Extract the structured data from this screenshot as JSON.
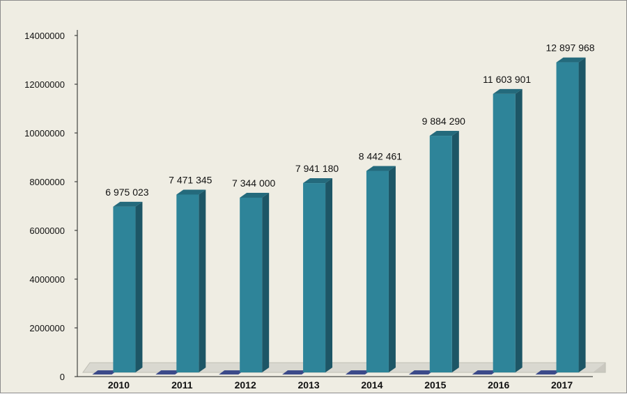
{
  "chart_data": {
    "type": "bar",
    "categories": [
      "2010",
      "2011",
      "2012",
      "2013",
      "2014",
      "2015",
      "2016",
      "2017"
    ],
    "values": [
      6975023,
      7471345,
      7344000,
      7941180,
      8442461,
      9884290,
      11603901,
      12897968
    ],
    "value_labels": [
      "6 975 023",
      "7 471 345",
      "7 344 000",
      "7 941 180",
      "8 442 461",
      "9 884 290",
      "11 603 901",
      "12 897 968"
    ],
    "y_ticks": [
      "0",
      "2000000",
      "4000000",
      "6000000",
      "8000000",
      "10000000",
      "12000000",
      "14000000"
    ],
    "ylim": [
      0,
      14000000
    ],
    "title": "",
    "xlabel": "",
    "ylabel": "",
    "grid": false,
    "legend": "none",
    "style": "3d-column",
    "colors": {
      "bar_front": "#2e8499",
      "bar_side": "#1d5666",
      "bar_top": "#246a7c",
      "floor": "#d9d8d0",
      "floor_edge": "#bfbeb5",
      "floor_mark": "#3c4a8a",
      "background": "#efede3",
      "axis": "#222222"
    }
  }
}
